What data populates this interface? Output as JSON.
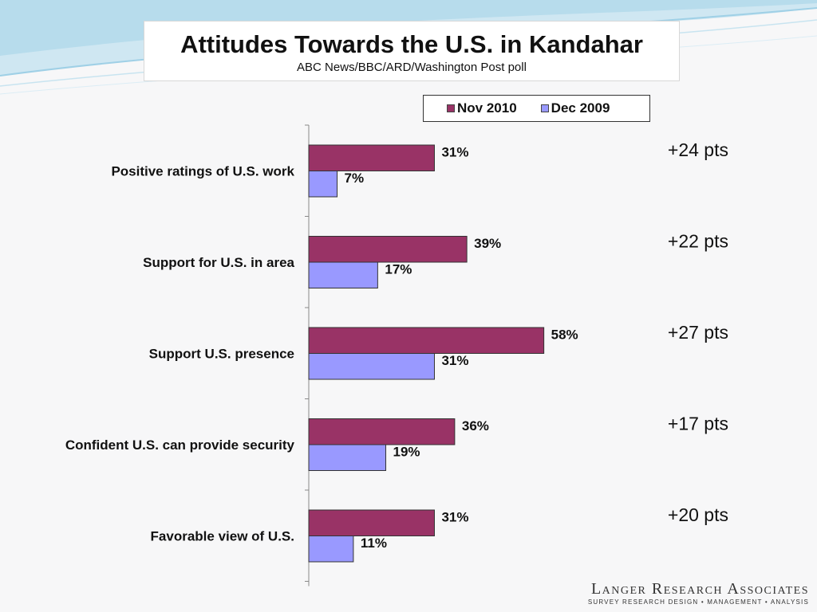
{
  "header": {
    "title": "Attitudes Towards the U.S. in Kandahar",
    "subtitle": "ABC News/BBC/ARD/Washington Post poll"
  },
  "legend": {
    "items": [
      {
        "label": "Nov 2010",
        "color": "#993366"
      },
      {
        "label": "Dec 2009",
        "color": "#9999ff"
      }
    ]
  },
  "chart_data": {
    "type": "bar",
    "orientation": "horizontal",
    "title": "Attitudes Towards the U.S. in Kandahar",
    "categories": [
      "Positive ratings of U.S. work",
      "Support for U.S. in area",
      "Support U.S. presence",
      "Confident U.S. can provide security",
      "Favorable view of U.S."
    ],
    "series": [
      {
        "name": "Nov 2010",
        "color": "#993366",
        "values": [
          31,
          39,
          58,
          36,
          31
        ]
      },
      {
        "name": "Dec 2009",
        "color": "#9999ff",
        "values": [
          7,
          17,
          31,
          19,
          11
        ]
      }
    ],
    "value_suffix": "%",
    "differences": [
      "+24 pts",
      "+22 pts",
      "+27 pts",
      "+17 pts",
      "+20 pts"
    ],
    "xlim": [
      0,
      100
    ],
    "grid": false,
    "legend_position": "top-right"
  },
  "logo": {
    "name": "Langer Research Associates",
    "tagline": "SURVEY RESEARCH DESIGN • MANAGEMENT • ANALYSIS"
  }
}
